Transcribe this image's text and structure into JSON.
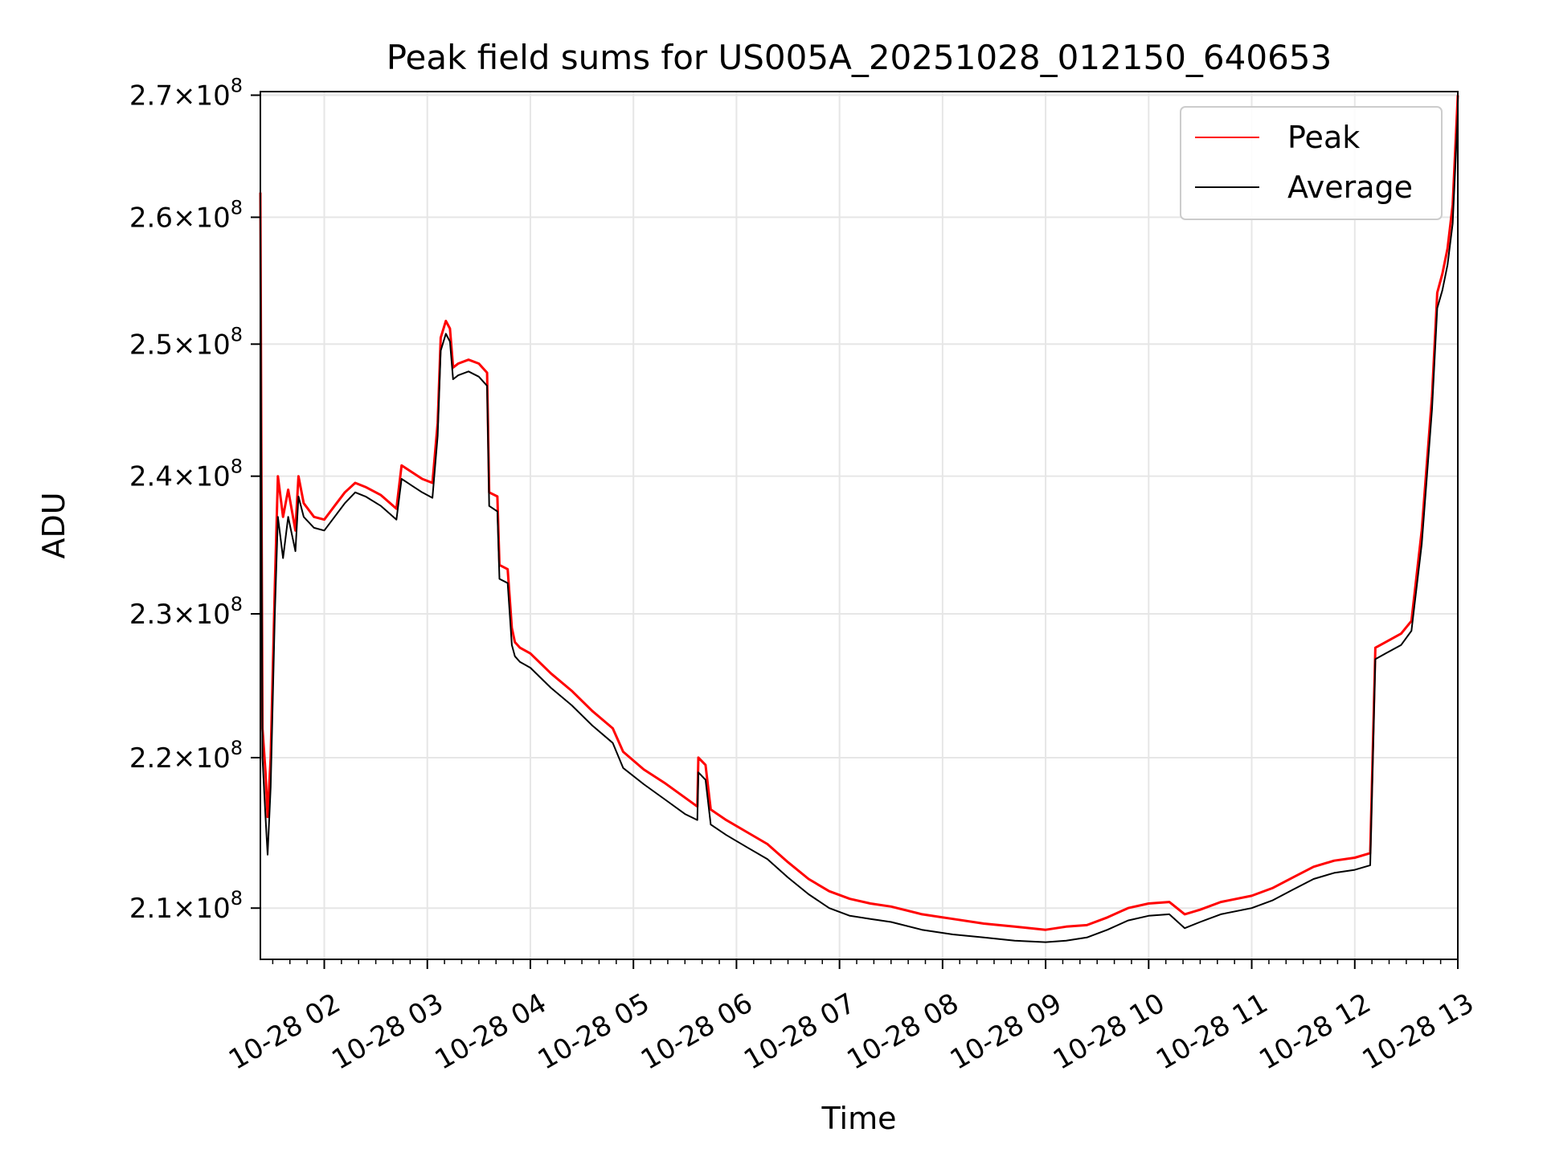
{
  "chart_data": {
    "type": "line",
    "title": "Peak field sums for US005A_20251028_012150_640653",
    "xlabel": "Time",
    "ylabel": "ADU",
    "x_unit": "hours on 2025-10-28",
    "xlim": [
      1.38,
      13.0
    ],
    "ylim": [
      206700000,
      270300000
    ],
    "y_scale": "log",
    "grid": true,
    "legend_position": "top-right",
    "x_ticks": [
      {
        "value": 2,
        "label": "10-28 02"
      },
      {
        "value": 3,
        "label": "10-28 03"
      },
      {
        "value": 4,
        "label": "10-28 04"
      },
      {
        "value": 5,
        "label": "10-28 05"
      },
      {
        "value": 6,
        "label": "10-28 06"
      },
      {
        "value": 7,
        "label": "10-28 07"
      },
      {
        "value": 8,
        "label": "10-28 08"
      },
      {
        "value": 9,
        "label": "10-28 09"
      },
      {
        "value": 10,
        "label": "10-28 10"
      },
      {
        "value": 11,
        "label": "10-28 11"
      },
      {
        "value": 12,
        "label": "10-28 12"
      },
      {
        "value": 13,
        "label": "10-28 13"
      }
    ],
    "y_ticks": [
      {
        "value": 210000000,
        "mantissa": "2.1",
        "exponent": "8"
      },
      {
        "value": 220000000,
        "mantissa": "2.2",
        "exponent": "8"
      },
      {
        "value": 230000000,
        "mantissa": "2.3",
        "exponent": "8"
      },
      {
        "value": 240000000,
        "mantissa": "2.4",
        "exponent": "8"
      },
      {
        "value": 250000000,
        "mantissa": "2.5",
        "exponent": "8"
      },
      {
        "value": 260000000,
        "mantissa": "2.6",
        "exponent": "8"
      },
      {
        "value": 270000000,
        "mantissa": "2.7",
        "exponent": "8"
      }
    ],
    "series": [
      {
        "name": "Peak",
        "color": "#ff0000",
        "points": [
          [
            1.38,
            262000000
          ],
          [
            1.39,
            240000000
          ],
          [
            1.4,
            222000000
          ],
          [
            1.43,
            219000000
          ],
          [
            1.45,
            216000000
          ],
          [
            1.48,
            220000000
          ],
          [
            1.52,
            232000000
          ],
          [
            1.55,
            240000000
          ],
          [
            1.6,
            237000000
          ],
          [
            1.65,
            239000000
          ],
          [
            1.72,
            236000000
          ],
          [
            1.75,
            240000000
          ],
          [
            1.8,
            238000000
          ],
          [
            1.9,
            237000000
          ],
          [
            2.0,
            236800000
          ],
          [
            2.1,
            237800000
          ],
          [
            2.2,
            238800000
          ],
          [
            2.3,
            239500000
          ],
          [
            2.4,
            239200000
          ],
          [
            2.55,
            238600000
          ],
          [
            2.7,
            237600000
          ],
          [
            2.75,
            240800000
          ],
          [
            2.85,
            240300000
          ],
          [
            2.95,
            239800000
          ],
          [
            3.05,
            239500000
          ],
          [
            3.1,
            244000000
          ],
          [
            3.13,
            250500000
          ],
          [
            3.18,
            251800000
          ],
          [
            3.22,
            251200000
          ],
          [
            3.25,
            248200000
          ],
          [
            3.3,
            248500000
          ],
          [
            3.4,
            248800000
          ],
          [
            3.5,
            248500000
          ],
          [
            3.58,
            247800000
          ],
          [
            3.6,
            238800000
          ],
          [
            3.68,
            238500000
          ],
          [
            3.7,
            233500000
          ],
          [
            3.78,
            233200000
          ],
          [
            3.82,
            229000000
          ],
          [
            3.85,
            228000000
          ],
          [
            3.9,
            227600000
          ],
          [
            4.0,
            227200000
          ],
          [
            4.2,
            225800000
          ],
          [
            4.4,
            224600000
          ],
          [
            4.6,
            223200000
          ],
          [
            4.8,
            222000000
          ],
          [
            4.9,
            220400000
          ],
          [
            5.1,
            219200000
          ],
          [
            5.3,
            218300000
          ],
          [
            5.5,
            217300000
          ],
          [
            5.62,
            216700000
          ],
          [
            5.63,
            220000000
          ],
          [
            5.7,
            219500000
          ],
          [
            5.75,
            216500000
          ],
          [
            5.9,
            215800000
          ],
          [
            6.1,
            215000000
          ],
          [
            6.3,
            214200000
          ],
          [
            6.5,
            213000000
          ],
          [
            6.7,
            211900000
          ],
          [
            6.9,
            211100000
          ],
          [
            7.1,
            210600000
          ],
          [
            7.3,
            210300000
          ],
          [
            7.5,
            210100000
          ],
          [
            7.8,
            209600000
          ],
          [
            8.1,
            209300000
          ],
          [
            8.4,
            209000000
          ],
          [
            8.7,
            208800000
          ],
          [
            9.0,
            208600000
          ],
          [
            9.2,
            208800000
          ],
          [
            9.4,
            208900000
          ],
          [
            9.6,
            209400000
          ],
          [
            9.8,
            210000000
          ],
          [
            10.0,
            210300000
          ],
          [
            10.2,
            210400000
          ],
          [
            10.35,
            209600000
          ],
          [
            10.5,
            209900000
          ],
          [
            10.7,
            210400000
          ],
          [
            11.0,
            210800000
          ],
          [
            11.2,
            211300000
          ],
          [
            11.4,
            212000000
          ],
          [
            11.6,
            212700000
          ],
          [
            11.8,
            213100000
          ],
          [
            12.0,
            213300000
          ],
          [
            12.15,
            213600000
          ],
          [
            12.2,
            227600000
          ],
          [
            12.3,
            228000000
          ],
          [
            12.45,
            228600000
          ],
          [
            12.55,
            229500000
          ],
          [
            12.65,
            236000000
          ],
          [
            12.75,
            246000000
          ],
          [
            12.8,
            254000000
          ],
          [
            12.85,
            255500000
          ],
          [
            12.9,
            257500000
          ],
          [
            12.95,
            261000000
          ],
          [
            13.0,
            270000000
          ]
        ]
      },
      {
        "name": "Average",
        "color": "#000000",
        "points": [
          [
            1.38,
            261000000
          ],
          [
            1.39,
            238000000
          ],
          [
            1.4,
            220000000
          ],
          [
            1.43,
            216000000
          ],
          [
            1.45,
            213500000
          ],
          [
            1.48,
            218000000
          ],
          [
            1.52,
            230000000
          ],
          [
            1.55,
            237000000
          ],
          [
            1.6,
            234000000
          ],
          [
            1.65,
            237000000
          ],
          [
            1.72,
            234500000
          ],
          [
            1.75,
            238500000
          ],
          [
            1.8,
            237000000
          ],
          [
            1.9,
            236200000
          ],
          [
            2.0,
            236000000
          ],
          [
            2.1,
            237000000
          ],
          [
            2.2,
            238000000
          ],
          [
            2.3,
            238800000
          ],
          [
            2.4,
            238500000
          ],
          [
            2.55,
            237800000
          ],
          [
            2.7,
            236800000
          ],
          [
            2.75,
            239800000
          ],
          [
            2.85,
            239300000
          ],
          [
            2.95,
            238800000
          ],
          [
            3.05,
            238400000
          ],
          [
            3.1,
            243000000
          ],
          [
            3.13,
            249500000
          ],
          [
            3.18,
            250800000
          ],
          [
            3.22,
            250200000
          ],
          [
            3.25,
            247300000
          ],
          [
            3.3,
            247600000
          ],
          [
            3.4,
            247900000
          ],
          [
            3.5,
            247500000
          ],
          [
            3.58,
            246800000
          ],
          [
            3.6,
            237800000
          ],
          [
            3.68,
            237400000
          ],
          [
            3.7,
            232500000
          ],
          [
            3.78,
            232200000
          ],
          [
            3.82,
            227800000
          ],
          [
            3.85,
            227000000
          ],
          [
            3.9,
            226600000
          ],
          [
            4.0,
            226200000
          ],
          [
            4.2,
            224800000
          ],
          [
            4.4,
            223600000
          ],
          [
            4.6,
            222200000
          ],
          [
            4.8,
            221000000
          ],
          [
            4.9,
            219300000
          ],
          [
            5.1,
            218200000
          ],
          [
            5.3,
            217200000
          ],
          [
            5.5,
            216200000
          ],
          [
            5.62,
            215800000
          ],
          [
            5.63,
            219000000
          ],
          [
            5.7,
            218500000
          ],
          [
            5.75,
            215500000
          ],
          [
            5.9,
            214800000
          ],
          [
            6.1,
            214000000
          ],
          [
            6.3,
            213200000
          ],
          [
            6.5,
            212000000
          ],
          [
            6.7,
            210900000
          ],
          [
            6.9,
            210000000
          ],
          [
            7.1,
            209500000
          ],
          [
            7.3,
            209300000
          ],
          [
            7.5,
            209100000
          ],
          [
            7.8,
            208600000
          ],
          [
            8.1,
            208300000
          ],
          [
            8.4,
            208100000
          ],
          [
            8.7,
            207900000
          ],
          [
            9.0,
            207800000
          ],
          [
            9.2,
            207900000
          ],
          [
            9.4,
            208100000
          ],
          [
            9.6,
            208600000
          ],
          [
            9.8,
            209200000
          ],
          [
            10.0,
            209500000
          ],
          [
            10.2,
            209600000
          ],
          [
            10.35,
            208700000
          ],
          [
            10.5,
            209100000
          ],
          [
            10.7,
            209600000
          ],
          [
            11.0,
            210000000
          ],
          [
            11.2,
            210500000
          ],
          [
            11.4,
            211200000
          ],
          [
            11.6,
            211900000
          ],
          [
            11.8,
            212300000
          ],
          [
            12.0,
            212500000
          ],
          [
            12.15,
            212800000
          ],
          [
            12.2,
            226800000
          ],
          [
            12.3,
            227200000
          ],
          [
            12.45,
            227800000
          ],
          [
            12.55,
            228800000
          ],
          [
            12.65,
            235000000
          ],
          [
            12.75,
            245000000
          ],
          [
            12.8,
            252800000
          ],
          [
            12.85,
            254200000
          ],
          [
            12.9,
            256200000
          ],
          [
            12.95,
            259500000
          ],
          [
            13.0,
            268500000
          ]
        ]
      }
    ]
  }
}
